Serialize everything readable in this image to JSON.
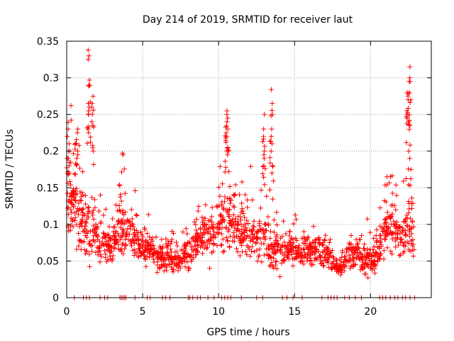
{
  "chart_data": {
    "type": "scatter",
    "title": "Day 214 of 2019, SRMTID for receiver laut",
    "xlabel": "GPS time / hours",
    "ylabel": "SRMTID / TECUs",
    "xlim": [
      0,
      24
    ],
    "ylim": [
      0,
      0.35
    ],
    "xticks": [
      0,
      5,
      10,
      15,
      20
    ],
    "xtick_labels": [
      "0",
      "5",
      "10",
      "15",
      "20"
    ],
    "yticks": [
      0,
      0.05,
      0.1,
      0.15,
      0.2,
      0.25,
      0.3,
      0.35
    ],
    "ytick_labels": [
      "0",
      "0.05",
      "0.1",
      "0.15",
      "0.2",
      "0.25",
      "0.3",
      "0.35"
    ],
    "grid": true,
    "marker": "+",
    "color": "#ff0000",
    "envelope": {
      "description": "approximate local baseline and spread of the point cloud vs. hour",
      "hours": [
        0.0,
        0.5,
        1.0,
        1.5,
        2.0,
        2.5,
        3.0,
        3.5,
        4.0,
        4.5,
        5.0,
        5.5,
        6.0,
        6.5,
        7.0,
        7.5,
        8.0,
        8.5,
        9.0,
        9.5,
        10.0,
        10.5,
        11.0,
        11.5,
        12.0,
        12.5,
        13.0,
        13.5,
        14.0,
        14.5,
        15.0,
        15.5,
        16.0,
        16.5,
        17.0,
        17.5,
        18.0,
        18.5,
        19.0,
        19.5,
        20.0,
        20.5,
        21.0,
        21.5,
        22.0,
        22.5,
        22.9
      ],
      "baseline": [
        0.14,
        0.12,
        0.1,
        0.09,
        0.08,
        0.07,
        0.07,
        0.1,
        0.09,
        0.08,
        0.065,
        0.065,
        0.055,
        0.055,
        0.05,
        0.05,
        0.06,
        0.08,
        0.09,
        0.085,
        0.095,
        0.11,
        0.1,
        0.09,
        0.085,
        0.08,
        0.08,
        0.07,
        0.065,
        0.06,
        0.065,
        0.065,
        0.06,
        0.07,
        0.06,
        0.045,
        0.04,
        0.055,
        0.06,
        0.05,
        0.05,
        0.06,
        0.09,
        0.1,
        0.08,
        0.1,
        0.08
      ],
      "spread": [
        0.05,
        0.05,
        0.04,
        0.04,
        0.03,
        0.025,
        0.025,
        0.035,
        0.03,
        0.025,
        0.02,
        0.02,
        0.018,
        0.018,
        0.015,
        0.018,
        0.025,
        0.03,
        0.03,
        0.03,
        0.035,
        0.04,
        0.035,
        0.03,
        0.03,
        0.03,
        0.035,
        0.03,
        0.025,
        0.02,
        0.025,
        0.025,
        0.02,
        0.025,
        0.02,
        0.015,
        0.015,
        0.02,
        0.02,
        0.018,
        0.018,
        0.02,
        0.03,
        0.035,
        0.03,
        0.04,
        0.03
      ]
    },
    "peaks": [
      {
        "hour": 0.1,
        "values": [
          0.23,
          0.22,
          0.21,
          0.2,
          0.19,
          0.18,
          0.17
        ]
      },
      {
        "hour": 0.7,
        "values": [
          0.23,
          0.225,
          0.2,
          0.195,
          0.19
        ]
      },
      {
        "hour": 1.45,
        "values": [
          0.338,
          0.33,
          0.325,
          0.29,
          0.265,
          0.26,
          0.255,
          0.25,
          0.23,
          0.225
        ]
      },
      {
        "hour": 1.7,
        "values": [
          0.275,
          0.265,
          0.26,
          0.24,
          0.235,
          0.2
        ]
      },
      {
        "hour": 3.7,
        "values": [
          0.197,
          0.195
        ]
      },
      {
        "hour": 10.55,
        "values": [
          0.255,
          0.25,
          0.245,
          0.24,
          0.23,
          0.225,
          0.22,
          0.205,
          0.2,
          0.195
        ]
      },
      {
        "hour": 13.0,
        "values": [
          0.25,
          0.23,
          0.22,
          0.2,
          0.195,
          0.19,
          0.18
        ]
      },
      {
        "hour": 13.5,
        "values": [
          0.284,
          0.265,
          0.25,
          0.23,
          0.22,
          0.21,
          0.2,
          0.18,
          0.17
        ]
      },
      {
        "hour": 22.45,
        "values": [
          0.28,
          0.275,
          0.27,
          0.255,
          0.25,
          0.245,
          0.24,
          0.2
        ]
      },
      {
        "hour": 22.6,
        "values": [
          0.315,
          0.3,
          0.295,
          0.28,
          0.27,
          0.235,
          0.19,
          0.175
        ]
      }
    ],
    "zero_points_hours": [
      0.5,
      1.1,
      1.3,
      1.5,
      2.2,
      2.5,
      2.7,
      3.5,
      3.6,
      3.7,
      3.8,
      3.9,
      4.5,
      5.3,
      5.5,
      6.3,
      6.5,
      6.8,
      8.0,
      8.1,
      8.3,
      8.6,
      8.8,
      9.3,
      9.7,
      10.2,
      10.4,
      10.6,
      10.8,
      11.5,
      12.5,
      12.9,
      14.2,
      14.5,
      14.9,
      15.5,
      16.8,
      17.2,
      17.4,
      17.6,
      17.8,
      18.3,
      18.6,
      19.0,
      19.4,
      20.6,
      20.8,
      21.0,
      21.3,
      21.6,
      21.8,
      22.1,
      22.3,
      22.6,
      22.9
    ]
  }
}
